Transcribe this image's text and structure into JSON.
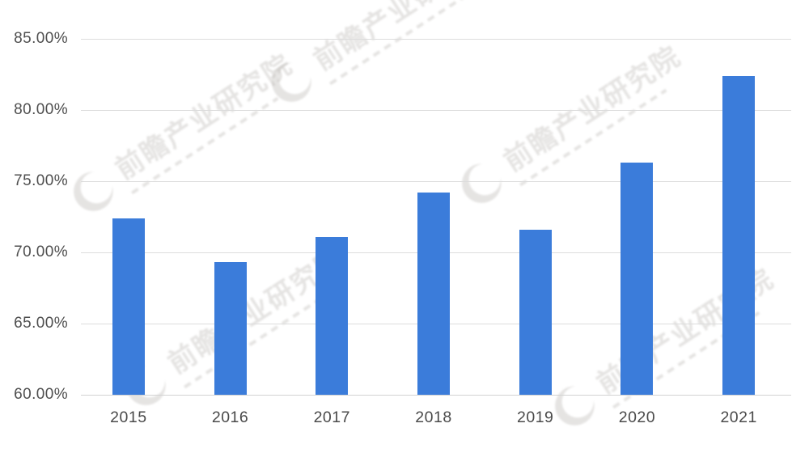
{
  "chart_data": {
    "type": "bar",
    "title": "",
    "categories": [
      "2015",
      "2016",
      "2017",
      "2018",
      "2019",
      "2020",
      "2021"
    ],
    "values": [
      72.4,
      69.3,
      71.1,
      74.2,
      71.6,
      76.3,
      82.4
    ],
    "unit": "%",
    "xlabel": "",
    "ylabel": "",
    "ylim": [
      60,
      85
    ],
    "grid": true,
    "legend": "none",
    "y_ticks": [
      {
        "label": "85.00%",
        "value": 85
      },
      {
        "label": "80.00%",
        "value": 80
      },
      {
        "label": "75.00%",
        "value": 75
      },
      {
        "label": "70.00%",
        "value": 70
      },
      {
        "label": "65.00%",
        "value": 65
      },
      {
        "label": "60.00%",
        "value": 60
      }
    ],
    "bar_color": "#3B7CDA",
    "gridline_color": "#DCDCDC",
    "axis_label_color": "#4F4F4F"
  },
  "watermark": {
    "text": "前瞻产业研究院"
  }
}
